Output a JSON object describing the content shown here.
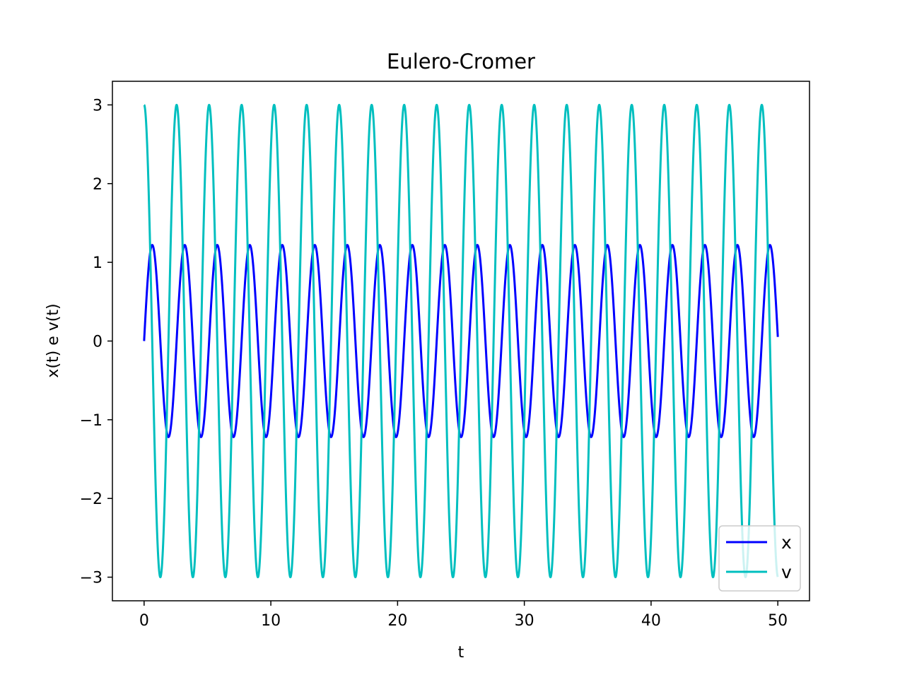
{
  "chart_data": {
    "type": "line",
    "title": "Eulero-Cromer",
    "xlabel": "t",
    "ylabel": "x(t) e v(t)",
    "xlim": [
      -2.5,
      52.5
    ],
    "ylim": [
      -3.3,
      3.3
    ],
    "xticks": [
      0,
      10,
      20,
      30,
      40,
      50
    ],
    "xtick_labels": [
      "0",
      "10",
      "20",
      "30",
      "40",
      "50"
    ],
    "yticks": [
      3,
      2,
      1,
      0,
      -1,
      -2,
      -3
    ],
    "ytick_labels": [
      "3",
      "2",
      "1",
      "0",
      "−1",
      "−2",
      "−3"
    ],
    "grid": false,
    "legend_position": "lower-right",
    "x_range": [
      0,
      50
    ],
    "series": [
      {
        "name": "x",
        "color": "#0000ff",
        "function": "harmonic",
        "amplitude": 1.22,
        "period": 2.565,
        "phase": 0,
        "initial_value": 0
      },
      {
        "name": "v",
        "color": "#00bfbf",
        "function": "harmonic",
        "amplitude": 3.0,
        "period": 2.565,
        "phase": 1.5708,
        "initial_value": 3.0
      }
    ]
  }
}
